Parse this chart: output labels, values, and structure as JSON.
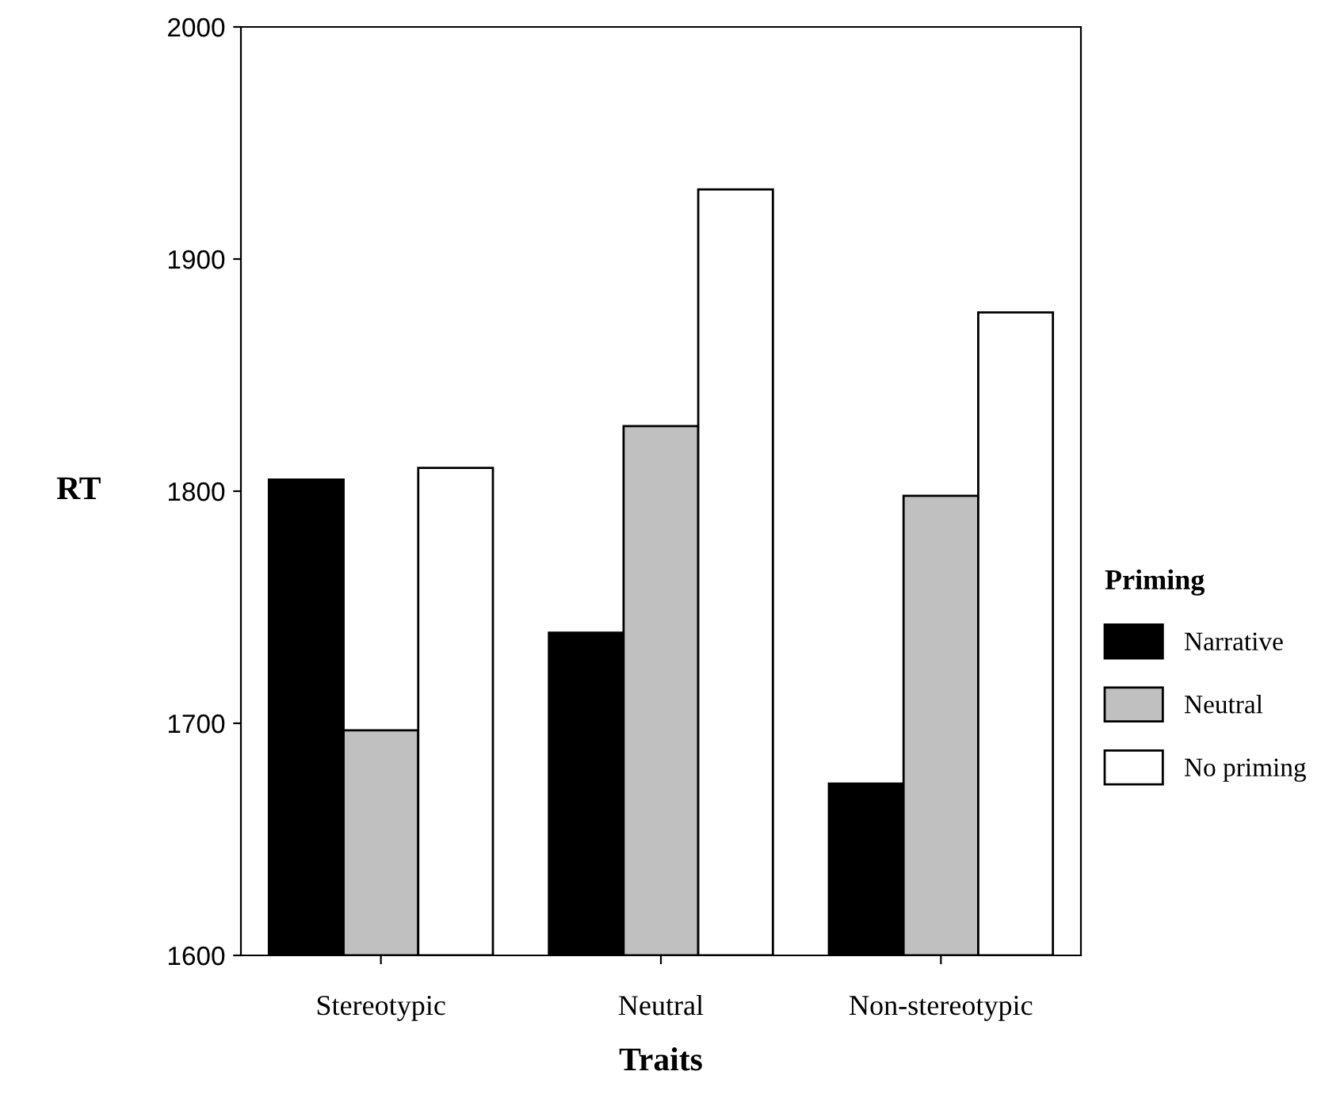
{
  "chart_data": {
    "type": "bar",
    "xlabel": "Traits",
    "ylabel": "RT",
    "legend_title": "Priming",
    "categories": [
      "Stereotypic",
      "Neutral",
      "Non-stereotypic"
    ],
    "series": [
      {
        "name": "Narrative",
        "color": "#000000",
        "values": [
          1805,
          1739,
          1674
        ]
      },
      {
        "name": "Neutral",
        "color": "#c0c0c0",
        "values": [
          1697,
          1828,
          1798
        ]
      },
      {
        "name": "No priming",
        "color": "#ffffff",
        "values": [
          1810,
          1930,
          1877
        ]
      }
    ],
    "ylim": [
      1600,
      2000
    ],
    "yticks": [
      1600,
      1700,
      1800,
      1900,
      2000
    ],
    "grid": false,
    "legend": "right"
  }
}
